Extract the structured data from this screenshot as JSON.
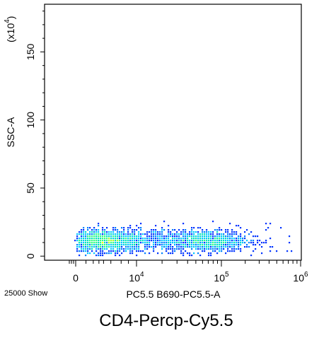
{
  "chart_data": {
    "type": "scatter",
    "title": "CD4-Percp-Cy5.5",
    "xlabel": "PC5.5 B690-PC5.5-A",
    "ylabel": "SSC-A",
    "y_multiplier": "(x10",
    "y_multiplier_exp": "4",
    "y_multiplier_close": ")",
    "event_count_label": "25000 Show",
    "x_scale": "biexponential",
    "xlim": [
      -2000,
      1000000
    ],
    "ylim": [
      -3,
      185
    ],
    "grid": false,
    "x_ticks": [
      {
        "value": 0,
        "base": "0",
        "exp": ""
      },
      {
        "value": 10000,
        "base": "10",
        "exp": "4"
      },
      {
        "value": 100000,
        "base": "10",
        "exp": "5"
      },
      {
        "value": 1000000,
        "base": "10",
        "exp": "6"
      }
    ],
    "y_ticks": [
      {
        "value": 0,
        "label": "0"
      },
      {
        "value": 50,
        "label": "50"
      },
      {
        "value": 100,
        "label": "100"
      },
      {
        "value": 150,
        "label": "150"
      }
    ],
    "populations": [
      {
        "name_hidden": "low",
        "center_x": 2500,
        "center_y": 11,
        "spread_x": 0.55,
        "spread_y": 4,
        "count": 1500
      },
      {
        "name_hidden": "high",
        "center_x": 65000,
        "center_y": 11,
        "spread_x": 0.25,
        "spread_y": 4,
        "count": 900
      },
      {
        "name_hidden": "bridge",
        "center_x": 18000,
        "center_y": 12,
        "spread_x": 0.45,
        "spread_y": 5,
        "count": 250
      }
    ],
    "density_colors": [
      "#0000ff",
      "#0033ff",
      "#0080ff",
      "#00c8ff",
      "#00e0c0",
      "#30ff80",
      "#a0ff30",
      "#ffff00"
    ]
  }
}
